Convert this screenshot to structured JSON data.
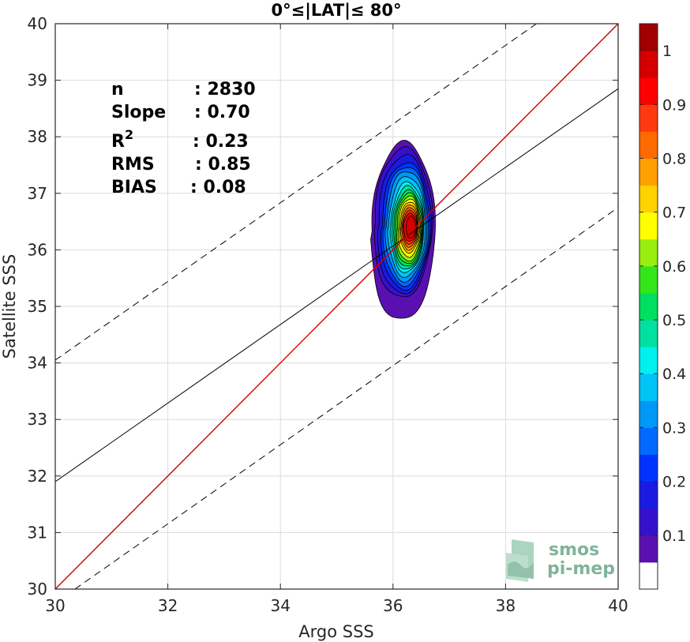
{
  "chart_data": {
    "type": "contour",
    "title": "0°≤|LAT|≤ 80°",
    "xlabel": "Argo SSS",
    "ylabel": "Satellite SSS",
    "xlim": [
      30,
      40
    ],
    "ylim": [
      30,
      40
    ],
    "xticks": [
      30,
      32,
      34,
      36,
      38,
      40
    ],
    "yticks": [
      30,
      31,
      32,
      33,
      34,
      35,
      36,
      37,
      38,
      39,
      40
    ],
    "grid": true,
    "lines": {
      "one_to_one": {
        "x": [
          30,
          40
        ],
        "y": [
          30,
          40
        ],
        "color": "#cc0000"
      },
      "fit": {
        "x": [
          30,
          40
        ],
        "y": [
          31.9,
          38.85
        ],
        "color": "#000000"
      },
      "upper_band": {
        "x": [
          30,
          38.55
        ],
        "y": [
          34.05,
          40
        ],
        "style": "dashed"
      },
      "lower_band": {
        "x": [
          30.35,
          40
        ],
        "y": [
          30,
          36.75
        ],
        "style": "dashed"
      }
    },
    "stats": [
      {
        "label": "n",
        "sep": ": ",
        "value": "2830"
      },
      {
        "label": "Slope",
        "sep": ": ",
        "value": "0.70"
      },
      {
        "label": "R",
        "sup": "2",
        "sep": ": ",
        "value": "0.23"
      },
      {
        "label": "RMS",
        "sep": ": ",
        "value": "0.85"
      },
      {
        "label": "BIAS",
        "sep": ": ",
        "value": "0.08"
      }
    ],
    "density_peak": {
      "x": 36.3,
      "y": 36.4
    },
    "contour_levels": [
      0.05,
      0.1,
      0.15,
      0.2,
      0.25,
      0.3,
      0.35,
      0.4,
      0.45,
      0.5,
      0.55,
      0.6,
      0.65,
      0.7,
      0.75,
      0.8,
      0.85,
      0.9,
      0.95
    ],
    "contour_extent_at_level": [
      {
        "level": 0.05,
        "x": [
          35.65,
          36.75
        ],
        "y": [
          34.75,
          37.9
        ]
      },
      {
        "level": 0.1,
        "x": [
          35.7,
          36.7
        ],
        "y": [
          35.15,
          37.8
        ]
      },
      {
        "level": 0.2,
        "x": [
          35.82,
          36.65
        ],
        "y": [
          35.3,
          37.55
        ]
      },
      {
        "level": 0.3,
        "x": [
          35.9,
          36.6
        ],
        "y": [
          35.45,
          37.4
        ]
      },
      {
        "level": 0.4,
        "x": [
          35.98,
          36.55
        ],
        "y": [
          35.6,
          37.2
        ]
      },
      {
        "level": 0.5,
        "x": [
          36.03,
          36.53
        ],
        "y": [
          35.7,
          37.05
        ]
      },
      {
        "level": 0.6,
        "x": [
          36.08,
          36.5
        ],
        "y": [
          35.8,
          36.95
        ]
      },
      {
        "level": 0.7,
        "x": [
          36.13,
          36.47
        ],
        "y": [
          35.95,
          36.85
        ]
      },
      {
        "level": 0.8,
        "x": [
          36.17,
          36.44
        ],
        "y": [
          36.05,
          36.75
        ]
      },
      {
        "level": 0.9,
        "x": [
          36.2,
          36.42
        ],
        "y": [
          36.15,
          36.65
        ]
      },
      {
        "level": 0.95,
        "x": [
          36.24,
          36.4
        ],
        "y": [
          36.2,
          36.6
        ]
      }
    ],
    "colorbar": {
      "ticks": [
        "0.1",
        "0.2",
        "0.3",
        "0.4",
        "0.5",
        "0.6",
        "0.7",
        "0.8",
        "0.9",
        "1"
      ],
      "tick_values": [
        0.1,
        0.2,
        0.3,
        0.4,
        0.5,
        0.6,
        0.7,
        0.8,
        0.9,
        1.0
      ],
      "levels": [
        {
          "from": 0.0,
          "to": 0.05,
          "color": "#ffffff"
        },
        {
          "from": 0.05,
          "to": 0.1,
          "color": "#5a10b0"
        },
        {
          "from": 0.1,
          "to": 0.15,
          "color": "#3710cc"
        },
        {
          "from": 0.15,
          "to": 0.2,
          "color": "#1a1ae0"
        },
        {
          "from": 0.2,
          "to": 0.25,
          "color": "#0033ff"
        },
        {
          "from": 0.25,
          "to": 0.3,
          "color": "#006aff"
        },
        {
          "from": 0.3,
          "to": 0.35,
          "color": "#0099f5"
        },
        {
          "from": 0.35,
          "to": 0.4,
          "color": "#00c4f5"
        },
        {
          "from": 0.4,
          "to": 0.45,
          "color": "#00f0f0"
        },
        {
          "from": 0.45,
          "to": 0.5,
          "color": "#00e0a0"
        },
        {
          "from": 0.5,
          "to": 0.55,
          "color": "#00e060"
        },
        {
          "from": 0.55,
          "to": 0.6,
          "color": "#33e61a"
        },
        {
          "from": 0.6,
          "to": 0.65,
          "color": "#99ee10"
        },
        {
          "from": 0.65,
          "to": 0.7,
          "color": "#ffff00"
        },
        {
          "from": 0.7,
          "to": 0.75,
          "color": "#ffd200"
        },
        {
          "from": 0.75,
          "to": 0.8,
          "color": "#ffa000"
        },
        {
          "from": 0.8,
          "to": 0.85,
          "color": "#ff6a00"
        },
        {
          "from": 0.85,
          "to": 0.9,
          "color": "#ff3a10"
        },
        {
          "from": 0.9,
          "to": 0.95,
          "color": "#ff0000"
        },
        {
          "from": 0.95,
          "to": 1.0,
          "color": "#d40000"
        },
        {
          "from": 1.0,
          "to": 1.05,
          "color": "#a00000"
        }
      ]
    }
  },
  "logo": {
    "line1": "smos",
    "line2": "pi-mep",
    "color": "#7fb49a"
  }
}
